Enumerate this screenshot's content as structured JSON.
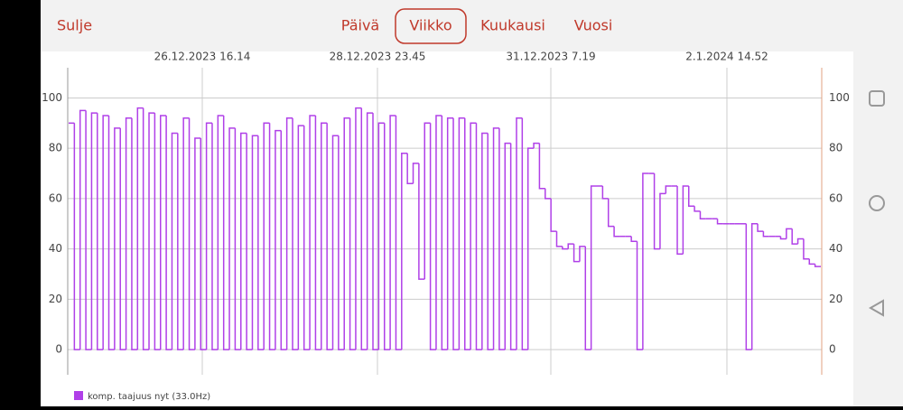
{
  "header": {
    "close": "Sulje",
    "tabs": [
      "Päivä",
      "Viikko",
      "Kuukausi",
      "Vuosi"
    ],
    "active_tab": 1
  },
  "chart_data": {
    "type": "line",
    "step": true,
    "xticks": [
      "26.12.2023 16.14",
      "28.12.2023 23.45",
      "31.12.2023 7.19",
      "2.1.2024 14.52"
    ],
    "ylim": [
      -10,
      112
    ],
    "yticks": [
      0,
      20,
      40,
      60,
      80,
      100
    ],
    "y2lim": [
      -10,
      112
    ],
    "y2ticks": [
      0,
      20,
      40,
      60,
      80,
      100
    ],
    "grid": true,
    "series": [
      {
        "name": "komp. taajuus nyt (33.0Hz)",
        "color": "#b040e8",
        "values": [
          90,
          0,
          95,
          0,
          94,
          0,
          93,
          0,
          88,
          0,
          92,
          0,
          96,
          0,
          94,
          0,
          93,
          0,
          86,
          0,
          92,
          0,
          84,
          0,
          90,
          0,
          93,
          0,
          88,
          0,
          86,
          0,
          85,
          0,
          90,
          0,
          87,
          0,
          92,
          0,
          89,
          0,
          93,
          0,
          90,
          0,
          85,
          0,
          92,
          0,
          96,
          0,
          94,
          0,
          90,
          0,
          93,
          0,
          78,
          66,
          74,
          28,
          90,
          0,
          93,
          0,
          92,
          0,
          92,
          0,
          90,
          0,
          86,
          0,
          88,
          0,
          82,
          0,
          92,
          0,
          80,
          82,
          64,
          60,
          47,
          41,
          40,
          42,
          35,
          41,
          0,
          65,
          65,
          60,
          49,
          45,
          45,
          45,
          43,
          0,
          70,
          70,
          40,
          62,
          65,
          65,
          38,
          65,
          57,
          55,
          52,
          52,
          52,
          50,
          50,
          50,
          50,
          50,
          0,
          50,
          47,
          45,
          45,
          45,
          44,
          48,
          42,
          44,
          36,
          34,
          33
        ]
      }
    ]
  }
}
